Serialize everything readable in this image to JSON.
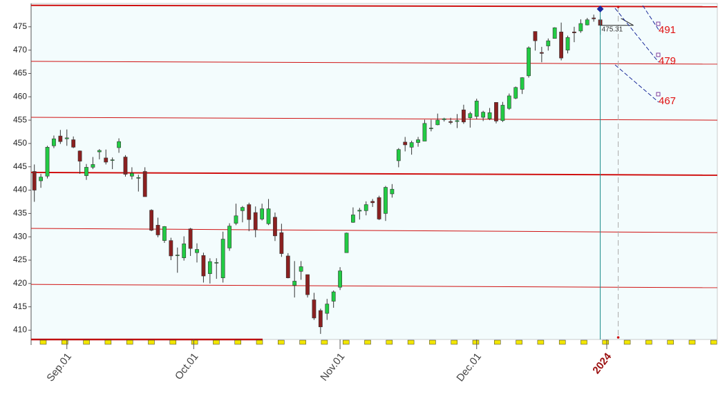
{
  "chart_data": {
    "type": "candlestick",
    "open": [
      444.0,
      442.0,
      443.0,
      449.5,
      451.6,
      451.0,
      450.8,
      448.4,
      443.1,
      444.9,
      448.2,
      446.9,
      446.5,
      449.1,
      447.1,
      443.0,
      442.7,
      444.0,
      435.7,
      432.5,
      429.2,
      429.2,
      426.1,
      425.5,
      431.7,
      426.6,
      426.0,
      422.1,
      424.4,
      421.2,
      427.6,
      432.9,
      435.6,
      436.9,
      435.2,
      433.8,
      432.8,
      434.2,
      430.9,
      425.9,
      419.6,
      422.6,
      421.9,
      416.5,
      414.2,
      413.6,
      416.2,
      419.2,
      426.6,
      433.1,
      435.5,
      435.6,
      437.6,
      438.4,
      435.0,
      439.2,
      446.3,
      450.3,
      449.2,
      450.2,
      450.5,
      453.2,
      454.0,
      455.1,
      454.7,
      454.7,
      457.2,
      455.5,
      455.8,
      455.6,
      455.3,
      458.8,
      454.9,
      457.5,
      459.7,
      461.6,
      464.5,
      474.0,
      469.5,
      470.9,
      472.5,
      473.9,
      470.0,
      473.9,
      474.1,
      475.4,
      476.9,
      476.5
    ],
    "high": [
      445.5,
      443.5,
      449.5,
      451.7,
      452.9,
      453.0,
      451.5,
      448.5,
      445.6,
      447.1,
      448.8,
      448.7,
      447.0,
      451.1,
      447.5,
      444.9,
      443.3,
      444.9,
      435.9,
      434.1,
      432.3,
      429.8,
      427.7,
      430.1,
      431.9,
      428.6,
      426.6,
      425.4,
      425.4,
      431.1,
      432.9,
      437.1,
      436.6,
      437.3,
      436.5,
      437.1,
      438.1,
      435.2,
      432.8,
      426.5,
      424.8,
      424.8,
      421.9,
      418.0,
      414.6,
      416.7,
      418.5,
      423.5,
      430.9,
      436.3,
      436.2,
      437.6,
      438.1,
      438.8,
      440.9,
      441.3,
      449.0,
      451.4,
      450.6,
      451.4,
      455.1,
      455.1,
      456.4,
      455.5,
      455.5,
      456.3,
      458.3,
      456.8,
      459.6,
      457.0,
      457.6,
      458.8,
      458.9,
      460.7,
      462.2,
      464.2,
      470.8,
      474.0,
      470.7,
      472.5,
      474.9,
      475.9,
      473.1,
      475.0,
      476.6,
      476.9,
      477.6,
      477.0
    ],
    "low": [
      437.5,
      440.5,
      442.5,
      449.0,
      449.9,
      449.5,
      449.0,
      443.5,
      442.2,
      444.5,
      446.6,
      445.5,
      444.5,
      448.0,
      442.9,
      442.3,
      439.7,
      438.6,
      431.2,
      429.9,
      428.7,
      425.0,
      422.3,
      424.9,
      425.9,
      424.5,
      420.2,
      420.0,
      421.0,
      420.2,
      427.0,
      432.5,
      433.1,
      431.2,
      429.9,
      433.5,
      432.5,
      429.1,
      425.7,
      421.1,
      417.0,
      420.8,
      417.0,
      412.2,
      409.2,
      412.2,
      414.8,
      418.6,
      426.6,
      433.0,
      433.7,
      434.6,
      436.4,
      433.6,
      433.4,
      438.4,
      444.9,
      448.3,
      447.6,
      449.3,
      450.5,
      452.6,
      453.9,
      454.7,
      454.1,
      453.3,
      454.2,
      453.4,
      455.2,
      454.8,
      455.0,
      454.3,
      454.6,
      457.2,
      459.5,
      460.6,
      464.1,
      469.9,
      467.4,
      469.9,
      472.5,
      467.8,
      469.3,
      471.7,
      473.7,
      475.3,
      476.1,
      473.3
    ],
    "close": [
      440.0,
      442.8,
      449.2,
      451.0,
      450.4,
      451.2,
      449.2,
      446.2,
      444.9,
      445.5,
      448.5,
      446.0,
      446.5,
      450.4,
      443.4,
      443.6,
      442.7,
      438.6,
      431.4,
      430.4,
      432.2,
      425.9,
      426.1,
      428.5,
      427.5,
      427.3,
      421.6,
      424.7,
      424.5,
      429.5,
      432.3,
      434.5,
      436.3,
      433.7,
      431.5,
      436.0,
      436.0,
      430.2,
      426.4,
      421.2,
      420.5,
      423.6,
      417.6,
      412.6,
      410.7,
      415.6,
      418.2,
      422.7,
      430.8,
      434.7,
      435.7,
      436.9,
      437.3,
      433.8,
      440.6,
      440.2,
      448.7,
      449.7,
      450.2,
      450.8,
      454.3,
      453.3,
      455.0,
      455.3,
      454.5,
      454.9,
      454.6,
      456.4,
      459.1,
      456.7,
      456.6,
      454.8,
      458.2,
      460.2,
      462.0,
      464.1,
      470.5,
      472.0,
      469.3,
      472.0,
      474.8,
      468.3,
      472.7,
      473.7,
      475.7,
      476.5,
      476.7,
      475.31
    ],
    "up_color": "#22cc44",
    "down_color": "#8b2020",
    "xlim": [
      -0.5,
      105
    ],
    "xticks": [
      {
        "value": 5,
        "label": "Sep.01"
      },
      {
        "value": 24.5,
        "label": "Oct.01"
      },
      {
        "value": 47,
        "label": "Nov.01"
      },
      {
        "value": 68,
        "label": "Dec.01"
      },
      {
        "value": 88,
        "label": "2024"
      }
    ],
    "ylim": [
      408,
      480
    ],
    "yticks": [
      410,
      415,
      420,
      425,
      430,
      435,
      440,
      445,
      450,
      455,
      460,
      465,
      470,
      475
    ],
    "reference_lines": [
      [
        479.6,
        479.3
      ],
      [
        467.6,
        467.0
      ],
      [
        455.6,
        455.0
      ],
      [
        443.8,
        443.2
      ],
      [
        431.8,
        430.9
      ],
      [
        419.8,
        419.1
      ]
    ],
    "reference_color": "#d01010",
    "projection_labels": [
      "491",
      "479",
      "467"
    ]
  }
}
